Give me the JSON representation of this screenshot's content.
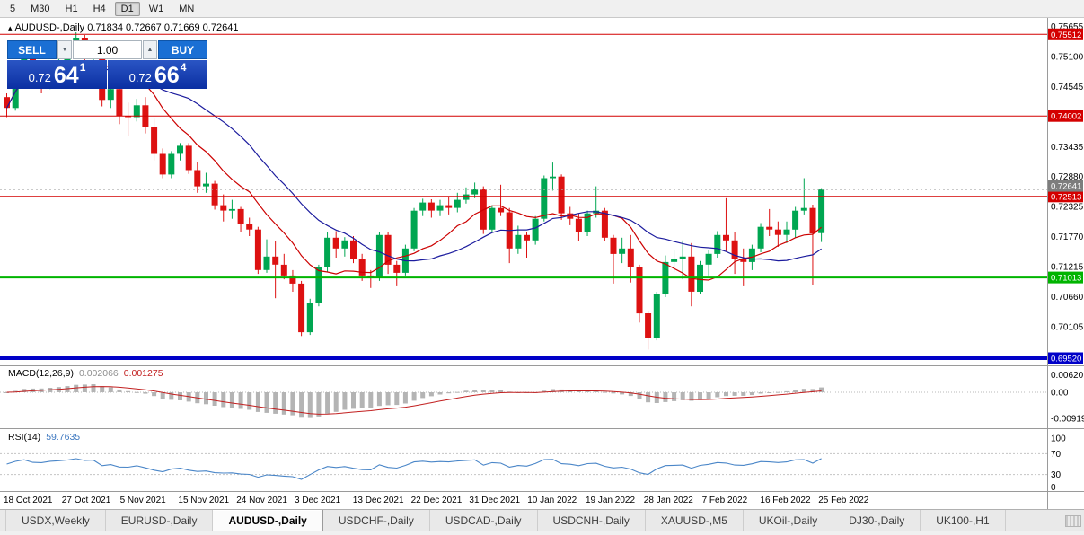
{
  "toolbar": {
    "timeframes": [
      "5",
      "M30",
      "H1",
      "H4",
      "D1",
      "W1",
      "MN"
    ],
    "active_timeframe": "D1"
  },
  "icons": {
    "expand_triangle": "▴",
    "spinner_down": "▼",
    "spinner_up": "▲"
  },
  "chart_title": {
    "symbol": "AUDUSD-,Daily",
    "ohlc": "0.71834 0.72667 0.71669 0.72641"
  },
  "trade_panel": {
    "sell_label": "SELL",
    "buy_label": "BUY",
    "volume": "1.00",
    "sell_price": {
      "base": "0.72",
      "big": "64",
      "sup": "1"
    },
    "buy_price": {
      "base": "0.72",
      "big": "66",
      "sup": "4"
    }
  },
  "indicator_labels": {
    "macd_name": "MACD(12,26,9)",
    "macd_value_main": "0.002066",
    "macd_value_signal": "0.001275",
    "rsi_name": "RSI(14)",
    "rsi_value": "59.7635"
  },
  "tabs": {
    "items": [
      "USDX,Weekly",
      "EURUSD-,Daily",
      "AUDUSD-,Daily",
      "USDCHF-,Daily",
      "USDCAD-,Daily",
      "USDCNH-,Daily",
      "XAUUSD-,M5",
      "UKOil-,Daily",
      "DJ30-,Daily",
      "UK100-,H1"
    ],
    "active": "AUDUSD-,Daily"
  },
  "chart_data": {
    "type": "candlestick",
    "symbol": "AUDUSD-,Daily",
    "timeframe": "Daily",
    "x_axis_dates": [
      "18 Oct 2021",
      "27 Oct 2021",
      "5 Nov 2021",
      "15 Nov 2021",
      "24 Nov 2021",
      "3 Dec 2021",
      "13 Dec 2021",
      "22 Dec 2021",
      "31 Dec 2021",
      "10 Jan 2022",
      "19 Jan 2022",
      "28 Jan 2022",
      "7 Feb 2022",
      "16 Feb 2022",
      "25 Feb 2022"
    ],
    "price_axis_ticks": [
      "0.75655",
      "0.75100",
      "0.74545",
      "0.73435",
      "0.72880",
      "0.72325",
      "0.71770",
      "0.71215",
      "0.70660",
      "0.70105"
    ],
    "horizontal_lines": [
      {
        "price": 0.75512,
        "label": "0.75512",
        "color": "#d40000",
        "width": 1
      },
      {
        "price": 0.74002,
        "label": "0.74002",
        "color": "#d40000",
        "width": 1
      },
      {
        "price": 0.72513,
        "label": "0.72513",
        "color": "#d40000",
        "width": 1
      },
      {
        "price": 0.71013,
        "label": "0.71013",
        "color": "#00b400",
        "width": 2
      },
      {
        "price": 0.6952,
        "label": "0.69520",
        "color": "#0000c8",
        "width": 4
      }
    ],
    "current_price_badge": {
      "price": 0.72641,
      "label": "0.72641",
      "color": "#7d7d7d"
    },
    "bull_color": "#00a651",
    "bear_color": "#dd1111",
    "ma_fast": {
      "period": 10,
      "color": "#cc0000"
    },
    "ma_slow": {
      "period": 21,
      "color": "#1c1c9e"
    },
    "macd": {
      "params": [
        12,
        26,
        9
      ],
      "axis_labels": [
        "0.00620",
        "0.00",
        "-0.00919"
      ],
      "hist_color": "#b4b4b4",
      "signal_color": "#c22020"
    },
    "rsi": {
      "period": 14,
      "levels": [
        70,
        30
      ],
      "axis_labels": [
        "100",
        "70",
        "30",
        "0"
      ],
      "color": "#4a86c8"
    },
    "candles": [
      [
        0.7435,
        0.7442,
        0.7398,
        0.7415
      ],
      [
        0.7415,
        0.748,
        0.741,
        0.7475
      ],
      [
        0.7475,
        0.7525,
        0.7465,
        0.7515
      ],
      [
        0.7515,
        0.752,
        0.7452,
        0.7465
      ],
      [
        0.7465,
        0.7492,
        0.7442,
        0.746
      ],
      [
        0.746,
        0.7495,
        0.745,
        0.7488
      ],
      [
        0.7488,
        0.7512,
        0.7478,
        0.75
      ],
      [
        0.75,
        0.7536,
        0.7492,
        0.7517
      ],
      [
        0.7517,
        0.7555,
        0.751,
        0.7545
      ],
      [
        0.7545,
        0.755,
        0.75,
        0.7518
      ],
      [
        0.7512,
        0.7535,
        0.7495,
        0.7525
      ],
      [
        0.7525,
        0.7528,
        0.7418,
        0.743
      ],
      [
        0.743,
        0.7462,
        0.7415,
        0.745
      ],
      [
        0.745,
        0.7455,
        0.7385,
        0.74
      ],
      [
        0.74,
        0.7425,
        0.7363,
        0.7398
      ],
      [
        0.7398,
        0.7432,
        0.739,
        0.742
      ],
      [
        0.742,
        0.7435,
        0.7368,
        0.738
      ],
      [
        0.738,
        0.7395,
        0.7318,
        0.733
      ],
      [
        0.733,
        0.734,
        0.7285,
        0.7292
      ],
      [
        0.7292,
        0.7335,
        0.7285,
        0.733
      ],
      [
        0.733,
        0.735,
        0.7318,
        0.7345
      ],
      [
        0.7345,
        0.735,
        0.7293,
        0.73
      ],
      [
        0.73,
        0.7315,
        0.7258,
        0.727
      ],
      [
        0.727,
        0.7295,
        0.7258,
        0.7275
      ],
      [
        0.7275,
        0.728,
        0.7227,
        0.7235
      ],
      [
        0.7235,
        0.7255,
        0.7205,
        0.7225
      ],
      [
        0.7225,
        0.7245,
        0.721,
        0.7228
      ],
      [
        0.7228,
        0.7232,
        0.7185,
        0.72
      ],
      [
        0.72,
        0.7212,
        0.7178,
        0.719
      ],
      [
        0.719,
        0.7195,
        0.7108,
        0.7115
      ],
      [
        0.7115,
        0.7172,
        0.711,
        0.714
      ],
      [
        0.714,
        0.7168,
        0.7063,
        0.7125
      ],
      [
        0.7125,
        0.7145,
        0.7098,
        0.7105
      ],
      [
        0.7105,
        0.7115,
        0.7075,
        0.709
      ],
      [
        0.709,
        0.7095,
        0.6993,
        0.7
      ],
      [
        0.7,
        0.7062,
        0.6995,
        0.7055
      ],
      [
        0.7055,
        0.7125,
        0.7048,
        0.712
      ],
      [
        0.712,
        0.7185,
        0.7112,
        0.7175
      ],
      [
        0.7175,
        0.7187,
        0.7138,
        0.7155
      ],
      [
        0.7155,
        0.7176,
        0.714,
        0.717
      ],
      [
        0.717,
        0.7178,
        0.7128,
        0.7135
      ],
      [
        0.7135,
        0.7145,
        0.7095,
        0.7105
      ],
      [
        0.7105,
        0.7115,
        0.7082,
        0.71
      ],
      [
        0.71,
        0.7185,
        0.7095,
        0.718
      ],
      [
        0.718,
        0.7186,
        0.7108,
        0.7125
      ],
      [
        0.7125,
        0.7132,
        0.7085,
        0.711
      ],
      [
        0.711,
        0.7162,
        0.7105,
        0.7155
      ],
      [
        0.7155,
        0.723,
        0.715,
        0.7225
      ],
      [
        0.7225,
        0.7247,
        0.7215,
        0.724
      ],
      [
        0.724,
        0.7246,
        0.7212,
        0.7225
      ],
      [
        0.7225,
        0.7245,
        0.7215,
        0.7235
      ],
      [
        0.7235,
        0.725,
        0.7218,
        0.723
      ],
      [
        0.723,
        0.7258,
        0.7222,
        0.7245
      ],
      [
        0.7245,
        0.7268,
        0.7238,
        0.7255
      ],
      [
        0.7255,
        0.7277,
        0.7248,
        0.7265
      ],
      [
        0.7265,
        0.727,
        0.7182,
        0.719
      ],
      [
        0.719,
        0.7235,
        0.7185,
        0.723
      ],
      [
        0.723,
        0.7273,
        0.7215,
        0.7222
      ],
      [
        0.7222,
        0.723,
        0.7128,
        0.7155
      ],
      [
        0.7155,
        0.7197,
        0.7145,
        0.718
      ],
      [
        0.718,
        0.7185,
        0.7138,
        0.717
      ],
      [
        0.717,
        0.7215,
        0.7162,
        0.721
      ],
      [
        0.721,
        0.729,
        0.7205,
        0.7285
      ],
      [
        0.7285,
        0.7314,
        0.7262,
        0.7288
      ],
      [
        0.7288,
        0.7292,
        0.7208,
        0.722
      ],
      [
        0.722,
        0.7232,
        0.7198,
        0.721
      ],
      [
        0.721,
        0.722,
        0.7168,
        0.7185
      ],
      [
        0.7185,
        0.7225,
        0.7178,
        0.722
      ],
      [
        0.722,
        0.727,
        0.7212,
        0.7225
      ],
      [
        0.7225,
        0.723,
        0.7168,
        0.7175
      ],
      [
        0.7175,
        0.718,
        0.709,
        0.7145
      ],
      [
        0.7145,
        0.7175,
        0.7128,
        0.7155
      ],
      [
        0.7155,
        0.718,
        0.7092,
        0.712
      ],
      [
        0.712,
        0.7125,
        0.7018,
        0.7035
      ],
      [
        0.7035,
        0.704,
        0.6968,
        0.699
      ],
      [
        0.699,
        0.7075,
        0.6985,
        0.707
      ],
      [
        0.707,
        0.7142,
        0.7065,
        0.713
      ],
      [
        0.713,
        0.7152,
        0.7112,
        0.7135
      ],
      [
        0.7135,
        0.717,
        0.7098,
        0.714
      ],
      [
        0.714,
        0.7165,
        0.7048,
        0.7075
      ],
      [
        0.7075,
        0.7132,
        0.707,
        0.7125
      ],
      [
        0.7125,
        0.7152,
        0.7105,
        0.7145
      ],
      [
        0.7145,
        0.7187,
        0.7138,
        0.718
      ],
      [
        0.718,
        0.7248,
        0.715,
        0.717
      ],
      [
        0.717,
        0.7185,
        0.7108,
        0.7135
      ],
      [
        0.7135,
        0.7155,
        0.7085,
        0.713
      ],
      [
        0.713,
        0.7162,
        0.7115,
        0.7155
      ],
      [
        0.7155,
        0.7202,
        0.7148,
        0.7195
      ],
      [
        0.7195,
        0.7228,
        0.7178,
        0.719
      ],
      [
        0.719,
        0.7205,
        0.7158,
        0.718
      ],
      [
        0.718,
        0.7205,
        0.7165,
        0.719
      ],
      [
        0.719,
        0.7232,
        0.7175,
        0.7225
      ],
      [
        0.7225,
        0.7285,
        0.7218,
        0.723
      ],
      [
        0.723,
        0.7236,
        0.7087,
        0.7183
      ],
      [
        0.71834,
        0.72667,
        0.71669,
        0.72641
      ]
    ]
  }
}
